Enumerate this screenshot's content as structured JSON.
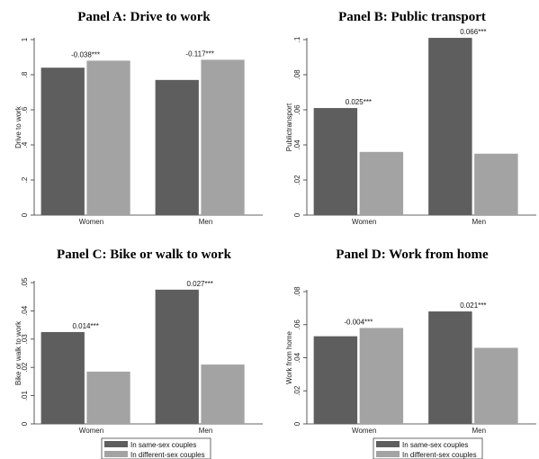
{
  "chart_data": [
    {
      "type": "bar",
      "title": "Panel A: Drive to work",
      "ylabel": "Drive to work",
      "categories": [
        "Women",
        "Men"
      ],
      "ylim": [
        0,
        1
      ],
      "yticks": [
        0,
        0.2,
        0.4,
        0.6,
        0.8,
        1
      ],
      "ytick_labels": [
        "0",
        ".2",
        ".4",
        ".6",
        ".8",
        "1"
      ],
      "series": [
        {
          "name": "In same-sex couples",
          "values": [
            0.84,
            0.77
          ]
        },
        {
          "name": "In different-sex couples",
          "values": [
            0.88,
            0.885
          ]
        }
      ],
      "annotations": [
        "-0.038***",
        "-0.117***"
      ]
    },
    {
      "type": "bar",
      "title": "Panel B: Public transport",
      "ylabel": "Publictransport",
      "categories": [
        "Women",
        "Men"
      ],
      "ylim": [
        0,
        0.1
      ],
      "yticks": [
        0,
        0.02,
        0.04,
        0.06,
        0.08,
        0.1
      ],
      "ytick_labels": [
        "0",
        ".02",
        ".04",
        ".06",
        ".08",
        ".1"
      ],
      "series": [
        {
          "name": "In same-sex couples",
          "values": [
            0.061,
            0.101
          ]
        },
        {
          "name": "In different-sex couples",
          "values": [
            0.036,
            0.035
          ]
        }
      ],
      "annotations": [
        "0.025***",
        "0.066***"
      ]
    },
    {
      "type": "bar",
      "title": "Panel C: Bike or walk to work",
      "ylabel": "Bike or walk to work",
      "categories": [
        "Women",
        "Men"
      ],
      "ylim": [
        0,
        0.05
      ],
      "yticks": [
        0,
        0.01,
        0.02,
        0.03,
        0.04,
        0.05
      ],
      "ytick_labels": [
        "0",
        ".01",
        ".02",
        ".03",
        ".04",
        ".05"
      ],
      "series": [
        {
          "name": "In same-sex couples",
          "values": [
            0.0325,
            0.0475
          ]
        },
        {
          "name": "In different-sex couples",
          "values": [
            0.0185,
            0.021
          ]
        }
      ],
      "annotations": [
        "0.014***",
        "0.027***"
      ]
    },
    {
      "type": "bar",
      "title": "Panel D: Work from home",
      "ylabel": "Work from home",
      "categories": [
        "Women",
        "Men"
      ],
      "ylim": [
        0,
        0.08
      ],
      "yticks": [
        0,
        0.02,
        0.04,
        0.06,
        0.08
      ],
      "ytick_labels": [
        "0",
        ".02",
        ".04",
        ".06",
        ".08"
      ],
      "series": [
        {
          "name": "In same-sex couples",
          "values": [
            0.053,
            0.068
          ]
        },
        {
          "name": "In different-sex couples",
          "values": [
            0.058,
            0.046
          ]
        }
      ],
      "annotations": [
        "-0.004***",
        "0.021***"
      ]
    }
  ],
  "legend": {
    "placement": "bottom",
    "items": [
      "In same-sex couples",
      "In different-sex couples"
    ]
  },
  "colors": {
    "same_sex": "#5e5e5e",
    "different_sex": "#a3a3a3"
  }
}
